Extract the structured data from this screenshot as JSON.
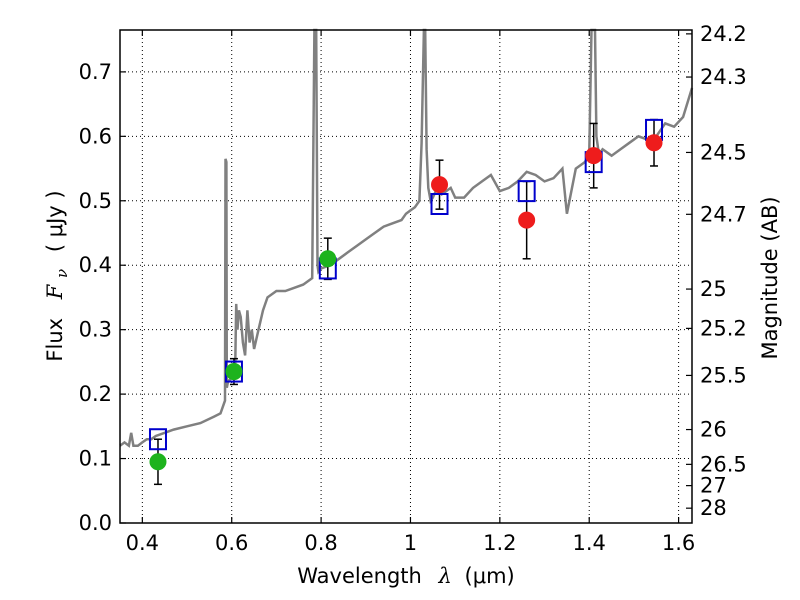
{
  "chart_data": {
    "type": "scatter",
    "xlabel_prefix": "Wavelength",
    "xlabel_symbol": "λ",
    "xlabel_unit": "(μm)",
    "ylabel_prefix": "Flux",
    "ylabel_symbol": "F",
    "ylabel_subscript": "ν",
    "ylabel_unit": "( μJy )",
    "y2label": "Magnitude (AB)",
    "xlim": [
      0.35,
      1.63
    ],
    "ylim": [
      0.0,
      0.765
    ],
    "grid": true,
    "x_ticks": [
      {
        "value": 0.4,
        "label": "0.4"
      },
      {
        "value": 0.6,
        "label": "0.6"
      },
      {
        "value": 0.8,
        "label": "0.8"
      },
      {
        "value": 1.0,
        "label": "1"
      },
      {
        "value": 1.2,
        "label": "1.2"
      },
      {
        "value": 1.4,
        "label": "1.4"
      },
      {
        "value": 1.6,
        "label": "1.6"
      }
    ],
    "y_ticks": [
      {
        "value": 0.0,
        "label": "0.0"
      },
      {
        "value": 0.1,
        "label": "0.1"
      },
      {
        "value": 0.2,
        "label": "0.2"
      },
      {
        "value": 0.3,
        "label": "0.3"
      },
      {
        "value": 0.4,
        "label": "0.4"
      },
      {
        "value": 0.5,
        "label": "0.5"
      },
      {
        "value": 0.6,
        "label": "0.6"
      },
      {
        "value": 0.7,
        "label": "0.7"
      }
    ],
    "mag_ticks": [
      {
        "label": "24.2",
        "flux": 0.759
      },
      {
        "label": "24.3",
        "flux": 0.692
      },
      {
        "label": "24.5",
        "flux": 0.575
      },
      {
        "label": "24.7",
        "flux": 0.479
      },
      {
        "label": "25",
        "flux": 0.363
      },
      {
        "label": "25.2",
        "flux": 0.302
      },
      {
        "label": "25.5",
        "flux": 0.229
      },
      {
        "label": "26",
        "flux": 0.145
      },
      {
        "label": "26.5",
        "flux": 0.091
      },
      {
        "label": "27",
        "flux": 0.058
      },
      {
        "label": "28",
        "flux": 0.023
      }
    ],
    "spectrum": {
      "name": "model spectrum",
      "color": "#808080",
      "x": [
        0.35,
        0.36,
        0.37,
        0.375,
        0.38,
        0.39,
        0.4,
        0.41,
        0.42,
        0.43,
        0.45,
        0.47,
        0.5,
        0.53,
        0.56,
        0.575,
        0.585,
        0.586,
        0.588,
        0.589,
        0.592,
        0.6,
        0.605,
        0.608,
        0.61,
        0.613,
        0.616,
        0.62,
        0.625,
        0.63,
        0.635,
        0.64,
        0.645,
        0.65,
        0.66,
        0.67,
        0.68,
        0.7,
        0.72,
        0.74,
        0.76,
        0.78,
        0.785,
        0.787,
        0.789,
        0.792,
        0.794,
        0.8,
        0.82,
        0.84,
        0.86,
        0.88,
        0.9,
        0.92,
        0.94,
        0.96,
        0.98,
        0.99,
        1.0,
        1.01,
        1.02,
        1.025,
        1.03,
        1.033,
        1.036,
        1.04,
        1.045,
        1.05,
        1.06,
        1.07,
        1.08,
        1.09,
        1.1,
        1.12,
        1.14,
        1.16,
        1.18,
        1.2,
        1.22,
        1.24,
        1.26,
        1.28,
        1.3,
        1.32,
        1.34,
        1.35,
        1.37,
        1.39,
        1.4,
        1.405,
        1.41,
        1.413,
        1.416,
        1.42,
        1.425,
        1.43,
        1.45,
        1.47,
        1.49,
        1.51,
        1.53,
        1.55,
        1.57,
        1.59,
        1.61,
        1.63
      ],
      "y": [
        0.12,
        0.125,
        0.12,
        0.14,
        0.12,
        0.12,
        0.125,
        0.13,
        0.13,
        0.135,
        0.14,
        0.145,
        0.15,
        0.155,
        0.165,
        0.17,
        0.19,
        0.565,
        0.56,
        0.21,
        0.22,
        0.225,
        0.23,
        0.25,
        0.34,
        0.3,
        0.33,
        0.32,
        0.28,
        0.26,
        0.33,
        0.28,
        0.3,
        0.27,
        0.3,
        0.33,
        0.35,
        0.36,
        0.36,
        0.365,
        0.37,
        0.38,
        0.765,
        0.765,
        0.765,
        0.4,
        0.39,
        0.395,
        0.4,
        0.41,
        0.42,
        0.43,
        0.44,
        0.45,
        0.46,
        0.465,
        0.47,
        0.48,
        0.485,
        0.49,
        0.5,
        0.59,
        0.765,
        0.765,
        0.58,
        0.52,
        0.5,
        0.505,
        0.52,
        0.51,
        0.515,
        0.52,
        0.505,
        0.505,
        0.52,
        0.53,
        0.54,
        0.515,
        0.52,
        0.53,
        0.545,
        0.54,
        0.53,
        0.535,
        0.55,
        0.48,
        0.55,
        0.56,
        0.57,
        0.765,
        0.765,
        0.765,
        0.6,
        0.58,
        0.575,
        0.58,
        0.57,
        0.58,
        0.59,
        0.6,
        0.595,
        0.6,
        0.62,
        0.615,
        0.63,
        0.675
      ]
    },
    "series": [
      {
        "name": "green measurements",
        "color": "#1db31d",
        "points": [
          {
            "x": 0.435,
            "y": 0.095,
            "err": 0.035
          },
          {
            "x": 0.605,
            "y": 0.235,
            "err": 0.02
          },
          {
            "x": 0.815,
            "y": 0.41,
            "err": 0.032
          }
        ]
      },
      {
        "name": "red measurements",
        "color": "#ee1c1c",
        "points": [
          {
            "x": 1.065,
            "y": 0.525,
            "err": 0.038
          },
          {
            "x": 1.26,
            "y": 0.47,
            "err": 0.06
          },
          {
            "x": 1.41,
            "y": 0.57,
            "err": 0.05
          },
          {
            "x": 1.545,
            "y": 0.59,
            "err": 0.036
          }
        ]
      },
      {
        "name": "model photometry (open squares)",
        "color": "#0000cc",
        "points": [
          {
            "x": 0.435,
            "y": 0.13
          },
          {
            "x": 0.605,
            "y": 0.235
          },
          {
            "x": 0.815,
            "y": 0.395
          },
          {
            "x": 1.065,
            "y": 0.495
          },
          {
            "x": 1.26,
            "y": 0.515
          },
          {
            "x": 1.41,
            "y": 0.56
          },
          {
            "x": 1.545,
            "y": 0.61
          }
        ]
      }
    ]
  }
}
